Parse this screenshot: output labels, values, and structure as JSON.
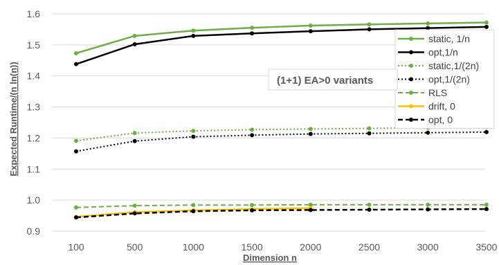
{
  "chart_data": {
    "type": "line",
    "title": "",
    "xlabel": "Dimension  n",
    "ylabel": "Expected Runtime/(n ln(n))",
    "categories": [
      "100",
      "500",
      "1000",
      "1500",
      "2000",
      "2500",
      "3000",
      "3500"
    ],
    "ylim": [
      0.9,
      1.6
    ],
    "yticks": [
      "0.9",
      "1.0",
      "1.1",
      "1.2",
      "1.3",
      "1.4",
      "1.5",
      "1.6"
    ],
    "grid": "horizontal",
    "legend_position": "right",
    "annotation": "(1+1) EA>0 variants",
    "series": [
      {
        "name": "static, 1/n",
        "color": "#70ad47",
        "style": "solid",
        "width": 2.5,
        "values": [
          1.473,
          1.529,
          1.546,
          1.555,
          1.562,
          1.566,
          1.569,
          1.572
        ]
      },
      {
        "name": "opt,1/n",
        "color": "#000000",
        "style": "solid",
        "width": 2.5,
        "values": [
          1.438,
          1.502,
          1.529,
          1.537,
          1.544,
          1.55,
          1.554,
          1.558
        ]
      },
      {
        "name": "static,1/(2n)",
        "color": "#70ad47",
        "style": "dotted",
        "width": 2,
        "values": [
          1.191,
          1.216,
          1.223,
          1.227,
          1.229,
          1.231,
          1.233,
          1.235
        ]
      },
      {
        "name": "opt,1/(2n)",
        "color": "#000000",
        "style": "dotted",
        "width": 2,
        "values": [
          1.157,
          1.19,
          1.204,
          1.209,
          1.213,
          1.215,
          1.217,
          1.219
        ]
      },
      {
        "name": "RLS",
        "color": "#70ad47",
        "style": "dashed",
        "width": 2,
        "values": [
          0.976,
          0.982,
          0.984,
          0.984,
          0.985,
          0.985,
          0.985,
          0.985
        ]
      },
      {
        "name": "drift, 0",
        "color": "#ffc000",
        "style": "solid",
        "width": 2.5,
        "values": [
          0.946,
          0.961,
          0.967,
          0.971,
          0.974,
          null,
          null,
          null
        ]
      },
      {
        "name": "opt, 0",
        "color": "#000000",
        "style": "dashed",
        "width": 2.5,
        "values": [
          0.944,
          0.957,
          0.964,
          0.967,
          0.968,
          0.969,
          0.97,
          0.971
        ]
      }
    ]
  }
}
